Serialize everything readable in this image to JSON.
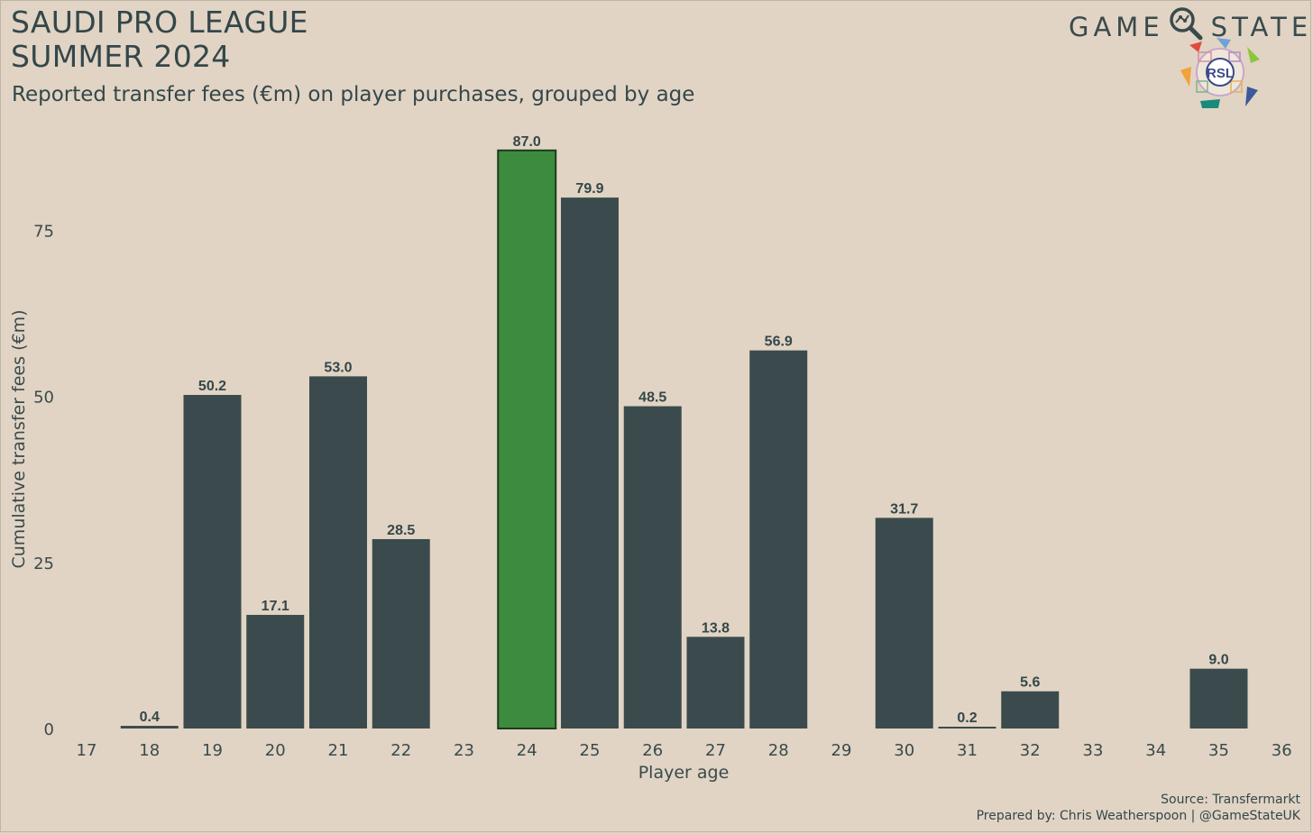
{
  "header": {
    "title_line1": "SAUDI PRO LEAGUE",
    "title_line2": "SUMMER 2024",
    "subtitle": "Reported transfer fees (€m) on player purchases, grouped by age"
  },
  "brand": {
    "word1": "GAME",
    "word2": "STATE",
    "logo_text": "RSL"
  },
  "chart_data": {
    "type": "bar",
    "title": "SAUDI PRO LEAGUE SUMMER 2024",
    "subtitle": "Reported transfer fees (€m) on player purchases, grouped by age",
    "xlabel": "Player age",
    "ylabel": "Cumulative transfer fees (€m)",
    "categories": [
      "17",
      "18",
      "19",
      "20",
      "21",
      "22",
      "23",
      "24",
      "25",
      "26",
      "27",
      "28",
      "29",
      "30",
      "31",
      "32",
      "33",
      "34",
      "35",
      "36"
    ],
    "values": [
      null,
      0.4,
      50.2,
      17.1,
      53.0,
      28.5,
      null,
      87.0,
      79.9,
      48.5,
      13.8,
      56.9,
      null,
      31.7,
      0.2,
      5.6,
      null,
      null,
      9.0,
      null
    ],
    "data_labels": [
      null,
      "0.4",
      "50.2",
      "17.1",
      "53.0",
      "28.5",
      null,
      "87.0",
      "79.9",
      "48.5",
      "13.8",
      "56.9",
      null,
      "31.7",
      "0.2",
      "5.6",
      null,
      null,
      "9.0",
      null
    ],
    "highlight_category": "24",
    "yticks": [
      0,
      25,
      50,
      75
    ],
    "ylim": [
      0,
      90
    ],
    "grid": false,
    "colors": {
      "bar": "#3b4b4d",
      "highlight": "#3d8b3f",
      "highlight_edge": "#1d3a1e",
      "background": "#e1d4c4"
    }
  },
  "footer": {
    "source": "Source: Transfermarkt",
    "prepared": "Prepared by: Chris Weatherspoon | @GameStateUK"
  }
}
